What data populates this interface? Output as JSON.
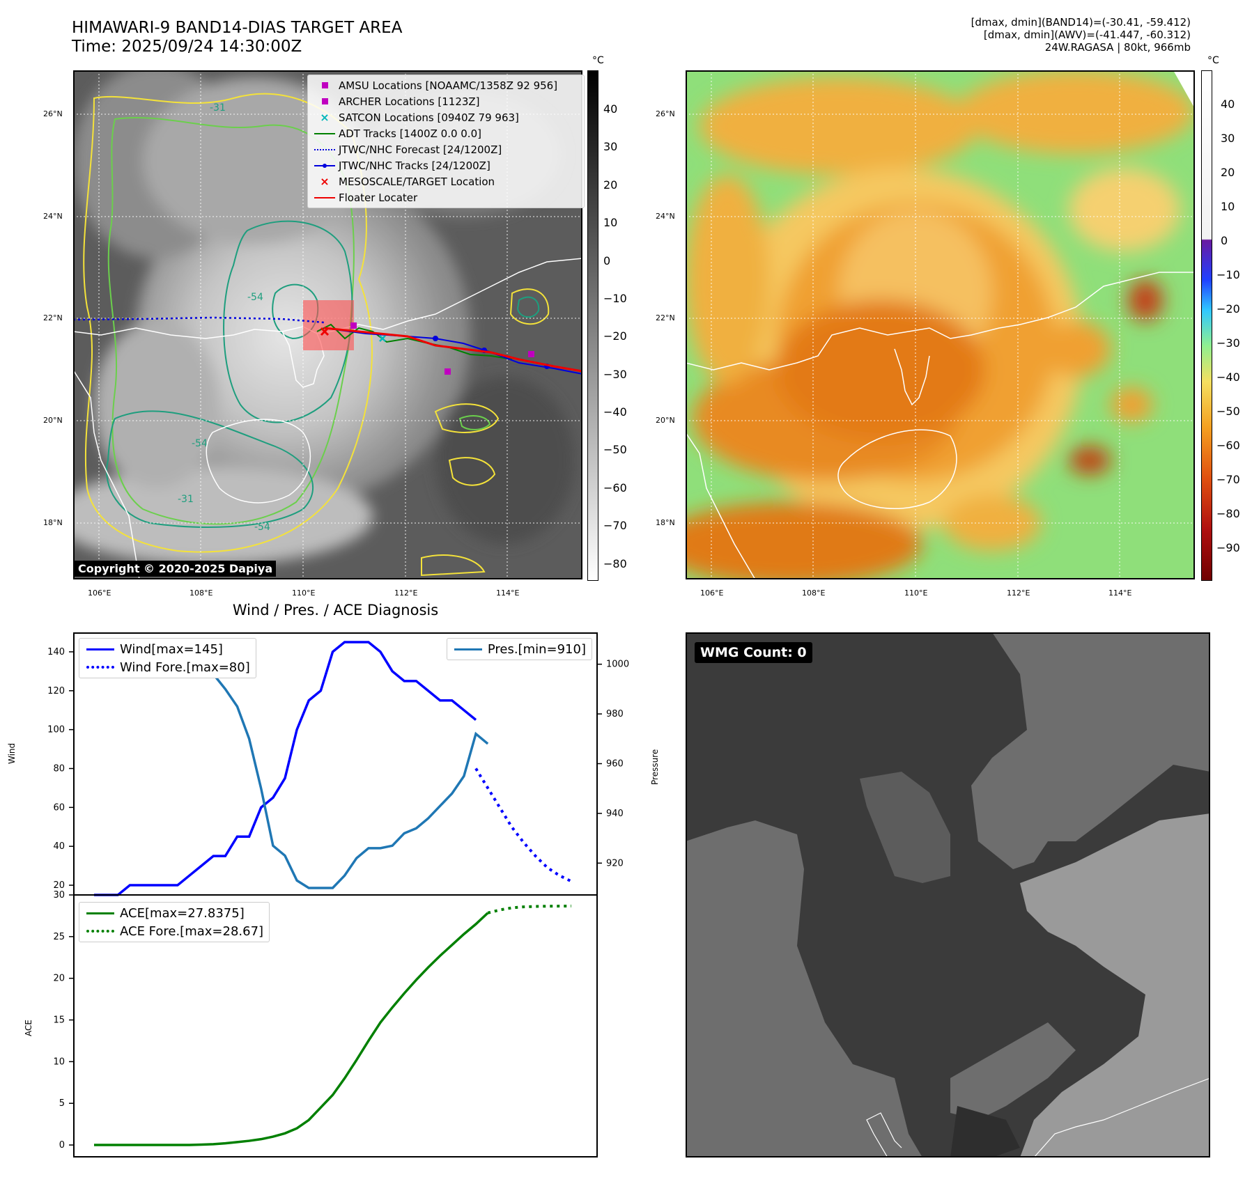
{
  "header": {
    "title_line1": "HIMAWARI-9 BAND14-DIAS TARGET AREA",
    "title_line2": "Time: 2025/09/24 14:30:00Z",
    "info_line1": "[dmax, dmin](BAND14)=(-30.41, -59.412)",
    "info_line2": "[dmax, dmin](AWV)=(-41.447, -60.312)",
    "info_line3": "24W.RAGASA | 80kt, 966mb"
  },
  "map1": {
    "lat_labels": [
      "26°N",
      "24°N",
      "22°N",
      "20°N",
      "18°N"
    ],
    "lon_labels": [
      "106°E",
      "108°E",
      "110°E",
      "112°E",
      "114°E"
    ],
    "copyright": "Copyright © 2020-2025 Dapiya",
    "colorbar_unit": "°C",
    "colorbar_ticks": [
      "40",
      "30",
      "20",
      "10",
      "0",
      "−10",
      "−20",
      "−30",
      "−40",
      "−50",
      "−60",
      "−70",
      "−80"
    ],
    "contour_labels": [
      "-31",
      "-54"
    ],
    "legend": [
      {
        "label": "AMSU Locations [NOAAMC/1358Z 92 956]",
        "symbol": "square",
        "color": "#c000c0"
      },
      {
        "label": "ARCHER Locations [1123Z]",
        "symbol": "square",
        "color": "#c000c0"
      },
      {
        "label": "SATCON Locations [0940Z 79 963]",
        "symbol": "x",
        "color": "#00b8b8"
      },
      {
        "label": "ADT Tracks [1400Z 0.0 0.0]",
        "symbol": "line",
        "color": "#008000"
      },
      {
        "label": "JTWC/NHC Forecast [24/1200Z]",
        "symbol": "dotted",
        "color": "#0000dd"
      },
      {
        "label": "JTWC/NHC Tracks [24/1200Z]",
        "symbol": "line-dot",
        "color": "#0000dd"
      },
      {
        "label": "MESOSCALE/TARGET Location",
        "symbol": "x",
        "color": "#ee0000"
      },
      {
        "label": "Floater Locater",
        "symbol": "line",
        "color": "#ee0000"
      }
    ]
  },
  "map2": {
    "lat_labels": [
      "26°N",
      "24°N",
      "22°N",
      "20°N",
      "18°N"
    ],
    "lon_labels": [
      "106°E",
      "108°E",
      "110°E",
      "112°E",
      "114°E"
    ],
    "colorbar_unit": "°C",
    "colorbar_ticks": [
      "40",
      "30",
      "20",
      "10",
      "0",
      "−10",
      "−20",
      "−30",
      "−40",
      "−50",
      "−60",
      "−70",
      "−80",
      "−90"
    ]
  },
  "wmg": {
    "label": "WMG Count: 0"
  },
  "colors": {
    "wind": "#0000ff",
    "pressure": "#1f77b4",
    "ace": "#008000",
    "map_bg": "#6e6e6e",
    "contour_yellow": "#f4e23a",
    "contour_green": "#6bcf4c",
    "contour_teal": "#1e9e7e"
  },
  "chart_data": [
    {
      "type": "line",
      "title": "Wind / Pres. / ACE Diagnosis",
      "ylabel": "Wind",
      "y2label": "Pressure",
      "ylim": [
        15,
        150
      ],
      "y2lim": [
        910,
        1010
      ],
      "yticks": [
        20,
        40,
        60,
        80,
        100,
        120,
        140
      ],
      "y2ticks": [
        920,
        940,
        960,
        980,
        1000
      ],
      "x": [
        0,
        1,
        2,
        3,
        4,
        5,
        6,
        7,
        8,
        9,
        10,
        11,
        12,
        13,
        14,
        15,
        16,
        17,
        18,
        19,
        20,
        21,
        22,
        23,
        24,
        25,
        26,
        27,
        28,
        29,
        30,
        31,
        32,
        33,
        34,
        35,
        36,
        37,
        38,
        39,
        40
      ],
      "series": [
        {
          "name": "Wind[max=145]",
          "style": "solid",
          "axis": "left",
          "x": [
            0,
            1,
            2,
            3,
            4,
            5,
            6,
            7,
            8,
            9,
            10,
            11,
            12,
            13,
            14,
            15,
            16,
            17,
            18,
            19,
            20,
            21,
            22,
            23,
            24,
            25,
            26,
            27,
            28,
            29,
            30,
            31,
            32
          ],
          "values": [
            15,
            15,
            15,
            20,
            20,
            20,
            20,
            20,
            25,
            30,
            35,
            35,
            45,
            45,
            60,
            65,
            75,
            100,
            115,
            120,
            140,
            145,
            145,
            145,
            140,
            130,
            125,
            125,
            120,
            115,
            115,
            110,
            105
          ]
        },
        {
          "name": "Wind Fore.[max=80]",
          "style": "dotted",
          "axis": "left",
          "x": [
            32,
            33,
            34,
            35,
            36,
            37,
            38,
            39,
            40
          ],
          "values": [
            80,
            70,
            60,
            50,
            42,
            35,
            29,
            25,
            22
          ]
        },
        {
          "name": "Pres.[min=910]",
          "style": "solid",
          "axis": "right",
          "x": [
            0,
            1,
            2,
            3,
            4,
            5,
            6,
            7,
            8,
            9,
            10,
            11,
            12,
            13,
            14,
            15,
            16,
            17,
            18,
            19,
            20,
            21,
            22,
            23,
            24,
            25,
            26,
            27,
            28,
            29,
            30,
            31,
            32,
            33
          ],
          "values": [
            1010,
            1007,
            1007,
            1007,
            1006,
            1006,
            1006,
            1004,
            1003,
            1000,
            996,
            990,
            983,
            970,
            950,
            927,
            923,
            913,
            910,
            910,
            910,
            915,
            922,
            926,
            926,
            927,
            932,
            934,
            938,
            943,
            948,
            955,
            972,
            968
          ]
        }
      ]
    },
    {
      "type": "line",
      "ylabel": "ACE",
      "ylim": [
        -1.5,
        30
      ],
      "yticks": [
        0,
        5,
        10,
        15,
        20,
        25,
        30
      ],
      "x": [
        0,
        1,
        2,
        3,
        4,
        5,
        6,
        7,
        8,
        9,
        10,
        11,
        12,
        13,
        14,
        15,
        16,
        17,
        18,
        19,
        20,
        21,
        22,
        23,
        24,
        25,
        26,
        27,
        28,
        29,
        30,
        31,
        32,
        33,
        34,
        35,
        36,
        37,
        38,
        39,
        40
      ],
      "series": [
        {
          "name": "ACE[max=27.8375]",
          "style": "solid",
          "x": [
            0,
            1,
            2,
            3,
            4,
            5,
            6,
            7,
            8,
            9,
            10,
            11,
            12,
            13,
            14,
            15,
            16,
            17,
            18,
            19,
            20,
            21,
            22,
            23,
            24,
            25,
            26,
            27,
            28,
            29,
            30,
            31,
            32,
            33
          ],
          "values": [
            0,
            0,
            0,
            0,
            0,
            0,
            0,
            0,
            0,
            0.05,
            0.1,
            0.2,
            0.35,
            0.5,
            0.7,
            1.0,
            1.4,
            2.0,
            3.0,
            4.5,
            6.0,
            8.0,
            10.2,
            12.5,
            14.7,
            16.5,
            18.2,
            19.8,
            21.3,
            22.7,
            24.0,
            25.3,
            26.5,
            27.84
          ]
        },
        {
          "name": "ACE Fore.[max=28.67]",
          "style": "dotted",
          "x": [
            33,
            34,
            35,
            36,
            37,
            38,
            39,
            40
          ],
          "values": [
            27.84,
            28.2,
            28.45,
            28.57,
            28.62,
            28.65,
            28.66,
            28.67
          ]
        }
      ]
    }
  ]
}
